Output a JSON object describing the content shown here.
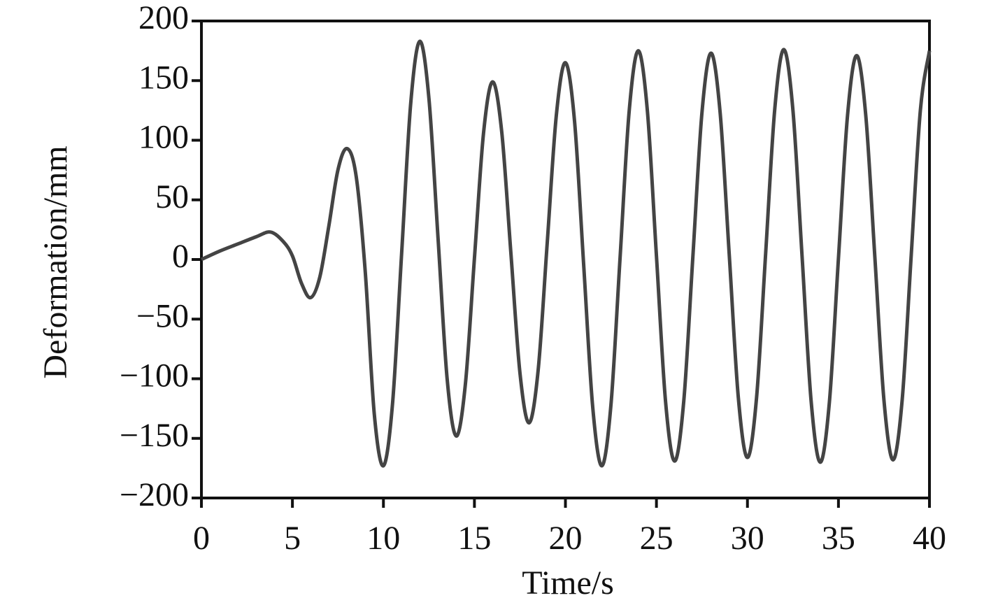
{
  "chart_data": {
    "type": "line",
    "x_label": "Time/s",
    "y_label": "Deformation/mm",
    "x": [
      0,
      1,
      2,
      3,
      3.8,
      4.5,
      5,
      5.5,
      6,
      6.5,
      7,
      7.5,
      8,
      8.5,
      9,
      9.5,
      10,
      10.5,
      11,
      11.5,
      12,
      12.5,
      13,
      13.5,
      14,
      14.5,
      15,
      15.5,
      16,
      16.5,
      17,
      17.5,
      18,
      18.5,
      19,
      19.5,
      20,
      20.5,
      21,
      21.5,
      22,
      22.5,
      23,
      23.5,
      24,
      24.5,
      25,
      25.5,
      26,
      26.5,
      27,
      27.5,
      28,
      28.5,
      29,
      29.5,
      30,
      30.5,
      31,
      31.5,
      32,
      32.5,
      33,
      33.5,
      34,
      34.5,
      35,
      35.5,
      36,
      36.5,
      37,
      37.5,
      38,
      38.5,
      39,
      39.5,
      40
    ],
    "series": [
      {
        "color": "#444444",
        "values": [
          0,
          7,
          13,
          19,
          23,
          15,
          3,
          -20,
          -32,
          -15,
          28,
          75,
          93,
          70,
          -10,
          -130,
          -173,
          -121,
          5,
          131,
          183,
          135,
          18,
          -100,
          -148,
          -105,
          1,
          106,
          149,
          107,
          6,
          -95,
          -137,
          -93,
          14,
          121,
          165,
          116,
          -4,
          -124,
          -173,
          -122,
          1,
          124,
          175,
          125,
          3,
          -119,
          -169,
          -119,
          2,
          123,
          173,
          123,
          4,
          -116,
          -166,
          -116,
          5,
          126,
          176,
          125,
          3,
          -119,
          -170,
          -120,
          1,
          121,
          171,
          121,
          2,
          -118,
          -168,
          -118,
          4,
          125,
          175
        ]
      }
    ],
    "xlim": [
      0,
      40
    ],
    "xticks": [
      0,
      5,
      10,
      15,
      20,
      25,
      30,
      35,
      40
    ],
    "ylim": [
      -200,
      200
    ],
    "yticks": [
      {
        "value": -200,
        "label": "−200"
      },
      {
        "value": -150,
        "label": "−150"
      },
      {
        "value": -100,
        "label": "−100"
      },
      {
        "value": -50,
        "label": "−50"
      },
      0,
      50,
      100,
      150,
      200
    ]
  }
}
